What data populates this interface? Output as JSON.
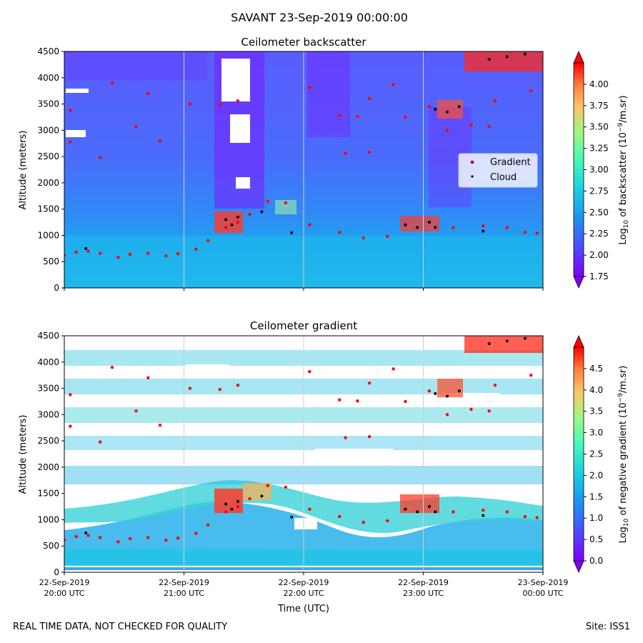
{
  "figure": {
    "suptitle": "SAVANT 23-Sep-2019 00:00:00",
    "footer_left": "REAL TIME DATA, NOT CHECKED FOR QUALITY",
    "footer_right": "Site: ISS1"
  },
  "chart_data": [
    {
      "type": "heatmap",
      "title": "Ceilometer backscatter",
      "xlabel": "",
      "ylabel": "Altitude (meters)",
      "ylim": [
        0,
        4500
      ],
      "yticks": [
        "0",
        "500",
        "1000",
        "1500",
        "2000",
        "2500",
        "3000",
        "3500",
        "4000",
        "4500"
      ],
      "xlim_hours_utc": [
        "2019-09-22 20:00",
        "2019-09-23 00:00"
      ],
      "xticks": [],
      "colormap": "rainbow",
      "colorbar": {
        "label_prefix": "Log",
        "label_sub": "10",
        "label_mid": " of backscatter (10",
        "label_sup": "−9",
        "label_suffix": "/m.sr)",
        "range": [
          1.75,
          4.25
        ],
        "ticks": [
          "1.75",
          "2.00",
          "2.25",
          "2.50",
          "2.75",
          "3.00",
          "3.25",
          "3.50",
          "3.75",
          "4.00"
        ]
      },
      "legend": {
        "position": "right",
        "entries": [
          {
            "label": "Gradient",
            "color": "#ff0000"
          },
          {
            "label": "Cloud",
            "color": "#000000"
          }
        ]
      },
      "gradient_series": [
        {
          "t": 20.0,
          "alt": 620
        },
        {
          "t": 20.1,
          "alt": 680
        },
        {
          "t": 20.2,
          "alt": 700
        },
        {
          "t": 20.3,
          "alt": 660
        },
        {
          "t": 20.45,
          "alt": 580
        },
        {
          "t": 20.55,
          "alt": 640
        },
        {
          "t": 20.7,
          "alt": 660
        },
        {
          "t": 20.85,
          "alt": 610
        },
        {
          "t": 20.95,
          "alt": 650
        },
        {
          "t": 21.1,
          "alt": 740
        },
        {
          "t": 21.2,
          "alt": 900
        },
        {
          "t": 21.35,
          "alt": 1150
        },
        {
          "t": 21.45,
          "alt": 1250
        },
        {
          "t": 21.55,
          "alt": 1400
        },
        {
          "t": 21.7,
          "alt": 1650
        },
        {
          "t": 21.85,
          "alt": 1620
        },
        {
          "t": 22.05,
          "alt": 1200
        },
        {
          "t": 22.3,
          "alt": 1060
        },
        {
          "t": 22.5,
          "alt": 950
        },
        {
          "t": 22.7,
          "alt": 980
        },
        {
          "t": 22.85,
          "alt": 1200
        },
        {
          "t": 23.05,
          "alt": 1250
        },
        {
          "t": 23.25,
          "alt": 1150
        },
        {
          "t": 23.5,
          "alt": 1180
        },
        {
          "t": 23.7,
          "alt": 1150
        },
        {
          "t": 23.85,
          "alt": 1060
        },
        {
          "t": 23.95,
          "alt": 1040
        },
        {
          "t": 20.05,
          "alt": 3380
        },
        {
          "t": 20.4,
          "alt": 3900
        },
        {
          "t": 20.7,
          "alt": 3700
        },
        {
          "t": 21.05,
          "alt": 3500
        },
        {
          "t": 21.3,
          "alt": 3480
        },
        {
          "t": 21.45,
          "alt": 3560
        },
        {
          "t": 22.05,
          "alt": 3820
        },
        {
          "t": 22.3,
          "alt": 3280
        },
        {
          "t": 22.45,
          "alt": 3260
        },
        {
          "t": 22.55,
          "alt": 3600
        },
        {
          "t": 22.75,
          "alt": 3870
        },
        {
          "t": 22.85,
          "alt": 3250
        },
        {
          "t": 23.05,
          "alt": 3450
        },
        {
          "t": 23.4,
          "alt": 3100
        },
        {
          "t": 23.6,
          "alt": 3560
        },
        {
          "t": 23.9,
          "alt": 3750
        },
        {
          "t": 20.3,
          "alt": 2480
        },
        {
          "t": 20.6,
          "alt": 3070
        },
        {
          "t": 20.8,
          "alt": 2800
        },
        {
          "t": 22.35,
          "alt": 2560
        },
        {
          "t": 22.55,
          "alt": 2580
        },
        {
          "t": 23.2,
          "alt": 3000
        },
        {
          "t": 23.55,
          "alt": 3070
        },
        {
          "t": 20.05,
          "alt": 2780
        }
      ],
      "cloud_series": [
        {
          "t": 20.18,
          "alt": 750
        },
        {
          "t": 21.35,
          "alt": 1300
        },
        {
          "t": 21.4,
          "alt": 1200
        },
        {
          "t": 21.45,
          "alt": 1350
        },
        {
          "t": 21.65,
          "alt": 1450
        },
        {
          "t": 21.9,
          "alt": 1050
        },
        {
          "t": 22.85,
          "alt": 1200
        },
        {
          "t": 22.95,
          "alt": 1150
        },
        {
          "t": 23.05,
          "alt": 1250
        },
        {
          "t": 23.1,
          "alt": 1150
        },
        {
          "t": 23.5,
          "alt": 1080
        },
        {
          "t": 23.1,
          "alt": 3400
        },
        {
          "t": 23.2,
          "alt": 3350
        },
        {
          "t": 23.3,
          "alt": 3450
        },
        {
          "t": 23.55,
          "alt": 4350
        },
        {
          "t": 23.7,
          "alt": 4400
        },
        {
          "t": 23.85,
          "alt": 4450
        }
      ]
    },
    {
      "type": "heatmap",
      "title": "Ceilometer gradient",
      "xlabel": "Time (UTC)",
      "ylabel": "Altitude (meters)",
      "ylim": [
        0,
        4500
      ],
      "yticks": [
        "0",
        "500",
        "1000",
        "1500",
        "2000",
        "2500",
        "3000",
        "3500",
        "4000",
        "4500"
      ],
      "xlim_hours_utc": [
        "2019-09-22 20:00",
        "2019-09-23 00:00"
      ],
      "xticks": [
        {
          "date": "22-Sep-2019",
          "time": "20:00 UTC"
        },
        {
          "date": "22-Sep-2019",
          "time": "21:00 UTC"
        },
        {
          "date": "22-Sep-2019",
          "time": "22:00 UTC"
        },
        {
          "date": "22-Sep-2019",
          "time": "23:00 UTC"
        },
        {
          "date": "23-Sep-2019",
          "time": "00:00 UTC"
        }
      ],
      "colormap": "rainbow",
      "colorbar": {
        "label_prefix": "Log",
        "label_sub": "10",
        "label_mid": " of negative gradient (10",
        "label_sup": "−9",
        "label_suffix": "/m.sr)",
        "range": [
          0.0,
          5.0
        ],
        "ticks": [
          "0.0",
          "0.5",
          "1.0",
          "1.5",
          "2.0",
          "2.5",
          "3.0",
          "3.5",
          "4.0",
          "4.5"
        ]
      },
      "gradient_series": [
        {
          "t": 20.0,
          "alt": 620
        },
        {
          "t": 20.1,
          "alt": 680
        },
        {
          "t": 20.2,
          "alt": 700
        },
        {
          "t": 20.3,
          "alt": 660
        },
        {
          "t": 20.45,
          "alt": 580
        },
        {
          "t": 20.55,
          "alt": 640
        },
        {
          "t": 20.7,
          "alt": 660
        },
        {
          "t": 20.85,
          "alt": 610
        },
        {
          "t": 20.95,
          "alt": 650
        },
        {
          "t": 21.1,
          "alt": 740
        },
        {
          "t": 21.2,
          "alt": 900
        },
        {
          "t": 21.35,
          "alt": 1150
        },
        {
          "t": 21.45,
          "alt": 1250
        },
        {
          "t": 21.55,
          "alt": 1400
        },
        {
          "t": 21.7,
          "alt": 1650
        },
        {
          "t": 21.85,
          "alt": 1620
        },
        {
          "t": 22.05,
          "alt": 1200
        },
        {
          "t": 22.3,
          "alt": 1060
        },
        {
          "t": 22.5,
          "alt": 950
        },
        {
          "t": 22.7,
          "alt": 980
        },
        {
          "t": 22.85,
          "alt": 1200
        },
        {
          "t": 23.05,
          "alt": 1250
        },
        {
          "t": 23.25,
          "alt": 1150
        },
        {
          "t": 23.5,
          "alt": 1180
        },
        {
          "t": 23.7,
          "alt": 1150
        },
        {
          "t": 23.85,
          "alt": 1060
        },
        {
          "t": 23.95,
          "alt": 1040
        },
        {
          "t": 20.05,
          "alt": 3380
        },
        {
          "t": 20.4,
          "alt": 3900
        },
        {
          "t": 20.7,
          "alt": 3700
        },
        {
          "t": 21.05,
          "alt": 3500
        },
        {
          "t": 21.3,
          "alt": 3480
        },
        {
          "t": 21.45,
          "alt": 3560
        },
        {
          "t": 22.05,
          "alt": 3820
        },
        {
          "t": 22.3,
          "alt": 3280
        },
        {
          "t": 22.45,
          "alt": 3260
        },
        {
          "t": 22.55,
          "alt": 3600
        },
        {
          "t": 22.75,
          "alt": 3870
        },
        {
          "t": 22.85,
          "alt": 3250
        },
        {
          "t": 23.05,
          "alt": 3450
        },
        {
          "t": 23.4,
          "alt": 3100
        },
        {
          "t": 23.6,
          "alt": 3560
        },
        {
          "t": 23.9,
          "alt": 3750
        },
        {
          "t": 20.3,
          "alt": 2480
        },
        {
          "t": 20.6,
          "alt": 3070
        },
        {
          "t": 20.8,
          "alt": 2800
        },
        {
          "t": 22.35,
          "alt": 2560
        },
        {
          "t": 22.55,
          "alt": 2580
        },
        {
          "t": 23.2,
          "alt": 3000
        },
        {
          "t": 23.55,
          "alt": 3070
        },
        {
          "t": 20.05,
          "alt": 2780
        }
      ],
      "cloud_series": [
        {
          "t": 20.18,
          "alt": 750
        },
        {
          "t": 21.35,
          "alt": 1300
        },
        {
          "t": 21.4,
          "alt": 1200
        },
        {
          "t": 21.45,
          "alt": 1350
        },
        {
          "t": 21.65,
          "alt": 1450
        },
        {
          "t": 21.9,
          "alt": 1050
        },
        {
          "t": 22.85,
          "alt": 1200
        },
        {
          "t": 22.95,
          "alt": 1150
        },
        {
          "t": 23.05,
          "alt": 1250
        },
        {
          "t": 23.1,
          "alt": 1150
        },
        {
          "t": 23.5,
          "alt": 1080
        },
        {
          "t": 23.1,
          "alt": 3400
        },
        {
          "t": 23.2,
          "alt": 3350
        },
        {
          "t": 23.3,
          "alt": 3450
        },
        {
          "t": 23.55,
          "alt": 4350
        },
        {
          "t": 23.7,
          "alt": 4400
        },
        {
          "t": 23.85,
          "alt": 4450
        }
      ]
    }
  ]
}
